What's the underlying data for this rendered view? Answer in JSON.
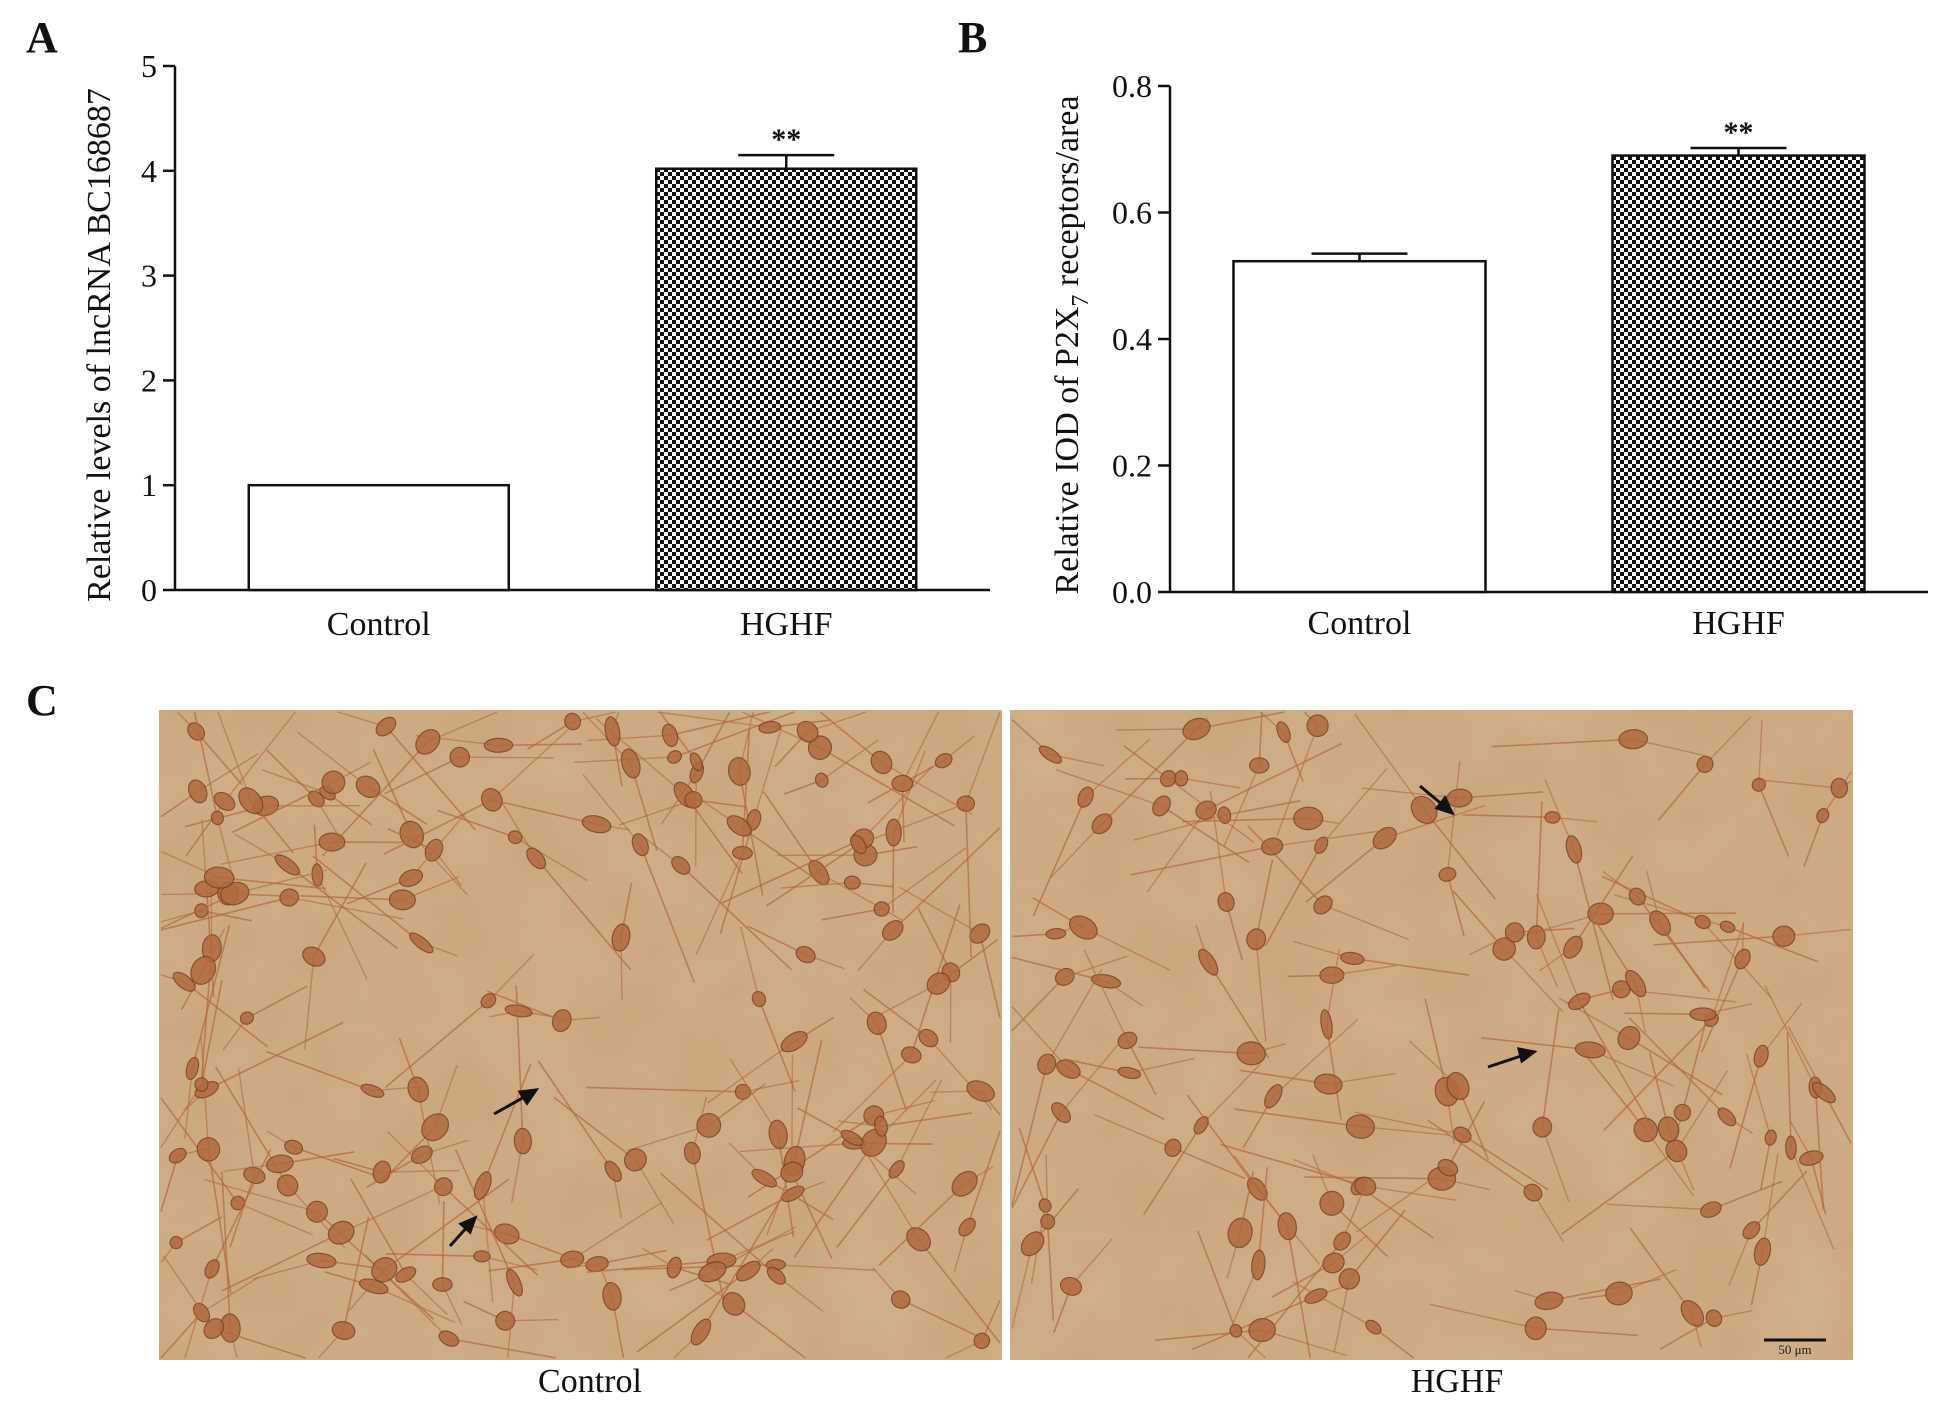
{
  "panels": {
    "A": "A",
    "B": "B",
    "C": "C"
  },
  "chart_data": [
    {
      "panel": "A",
      "type": "bar",
      "ylabel": "Relative levels of lncRNA BC168687",
      "xlabel": "",
      "ylim": [
        0,
        5
      ],
      "yticks": [
        "0",
        "1",
        "2",
        "3",
        "4",
        "5"
      ],
      "categories": [
        "Control",
        "HGHF"
      ],
      "values": [
        1.0,
        4.02
      ],
      "errors": [
        0,
        0.13
      ],
      "significance": [
        "",
        "**"
      ],
      "fills": [
        "white",
        "checkered"
      ]
    },
    {
      "panel": "B",
      "type": "bar",
      "ylabel_main": "Relative IOD of P2X",
      "ylabel_sub": "7",
      "ylabel_tail": " receptors/area",
      "xlabel": "",
      "ylim": [
        0,
        0.8
      ],
      "yticks": [
        "0.0",
        "0.2",
        "0.4",
        "0.6",
        "0.8"
      ],
      "categories": [
        "Control",
        "HGHF"
      ],
      "values": [
        0.523,
        0.69
      ],
      "errors": [
        0.012,
        0.012
      ],
      "significance": [
        "",
        "**"
      ],
      "fills": [
        "white",
        "checkered"
      ]
    }
  ],
  "micrographs": {
    "left_caption": "Control",
    "right_caption": "HGHF",
    "scale_bar_label": "50 μm",
    "background_color": "#c9a57a",
    "cell_color": "#b06a3f"
  }
}
